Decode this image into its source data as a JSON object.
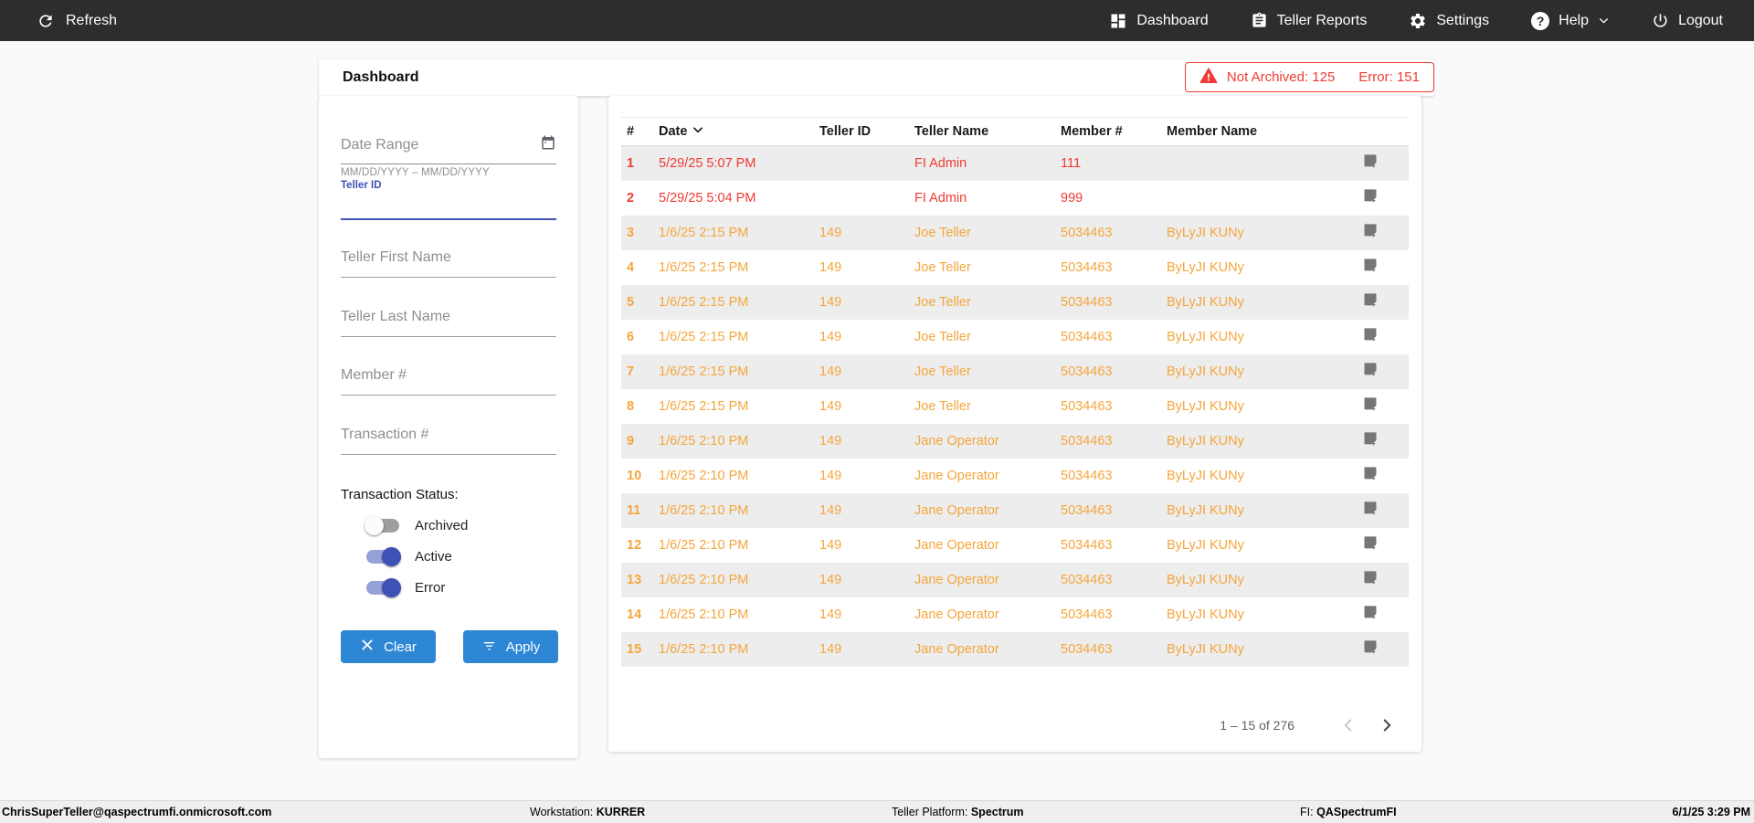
{
  "navbar": {
    "refresh_label": "Refresh",
    "items": [
      {
        "label": "Dashboard",
        "icon": "dashboard-icon"
      },
      {
        "label": "Teller Reports",
        "icon": "teller-reports-icon"
      },
      {
        "label": "Settings",
        "icon": "gear-icon"
      },
      {
        "label": "Help",
        "icon": "help-icon",
        "chevron": true
      },
      {
        "label": "Logout",
        "icon": "power-icon"
      }
    ]
  },
  "header": {
    "title": "Dashboard",
    "alert": {
      "not_archived": "Not Archived: 125",
      "error": "Error: 151"
    }
  },
  "filters": {
    "date_range_placeholder": "Date Range",
    "date_range_helper": "MM/DD/YYYY – MM/DD/YYYY",
    "teller_id_label": "Teller ID",
    "teller_first_name_placeholder": "Teller First Name",
    "teller_last_name_placeholder": "Teller Last Name",
    "member_number_placeholder": "Member #",
    "transaction_number_placeholder": "Transaction #",
    "status_heading": "Transaction Status:",
    "toggles": [
      {
        "label": "Archived",
        "on": false
      },
      {
        "label": "Active",
        "on": true
      },
      {
        "label": "Error",
        "on": true
      }
    ],
    "clear_button": "Clear",
    "apply_button": "Apply"
  },
  "table": {
    "columns": [
      "#",
      "Date",
      "Teller ID",
      "Teller Name",
      "Member #",
      "Member Name"
    ],
    "sort_column": "Date",
    "rows": [
      {
        "num": "1",
        "date": "5/29/25 5:07 PM",
        "teller_id": "",
        "teller_name": "FI Admin",
        "member_number": "111",
        "member_name": "",
        "status": "error"
      },
      {
        "num": "2",
        "date": "5/29/25 5:04 PM",
        "teller_id": "",
        "teller_name": "FI Admin",
        "member_number": "999",
        "member_name": "",
        "status": "error"
      },
      {
        "num": "3",
        "date": "1/6/25 2:15 PM",
        "teller_id": "149",
        "teller_name": "Joe Teller",
        "member_number": "5034463",
        "member_name": "ByLyJI KUNy",
        "status": "warning"
      },
      {
        "num": "4",
        "date": "1/6/25 2:15 PM",
        "teller_id": "149",
        "teller_name": "Joe Teller",
        "member_number": "5034463",
        "member_name": "ByLyJI KUNy",
        "status": "warning"
      },
      {
        "num": "5",
        "date": "1/6/25 2:15 PM",
        "teller_id": "149",
        "teller_name": "Joe Teller",
        "member_number": "5034463",
        "member_name": "ByLyJI KUNy",
        "status": "warning"
      },
      {
        "num": "6",
        "date": "1/6/25 2:15 PM",
        "teller_id": "149",
        "teller_name": "Joe Teller",
        "member_number": "5034463",
        "member_name": "ByLyJI KUNy",
        "status": "warning"
      },
      {
        "num": "7",
        "date": "1/6/25 2:15 PM",
        "teller_id": "149",
        "teller_name": "Joe Teller",
        "member_number": "5034463",
        "member_name": "ByLyJI KUNy",
        "status": "warning"
      },
      {
        "num": "8",
        "date": "1/6/25 2:15 PM",
        "teller_id": "149",
        "teller_name": "Joe Teller",
        "member_number": "5034463",
        "member_name": "ByLyJI KUNy",
        "status": "warning"
      },
      {
        "num": "9",
        "date": "1/6/25 2:10 PM",
        "teller_id": "149",
        "teller_name": "Jane Operator",
        "member_number": "5034463",
        "member_name": "ByLyJI KUNy",
        "status": "warning"
      },
      {
        "num": "10",
        "date": "1/6/25 2:10 PM",
        "teller_id": "149",
        "teller_name": "Jane Operator",
        "member_number": "5034463",
        "member_name": "ByLyJI KUNy",
        "status": "warning"
      },
      {
        "num": "11",
        "date": "1/6/25 2:10 PM",
        "teller_id": "149",
        "teller_name": "Jane Operator",
        "member_number": "5034463",
        "member_name": "ByLyJI KUNy",
        "status": "warning"
      },
      {
        "num": "12",
        "date": "1/6/25 2:10 PM",
        "teller_id": "149",
        "teller_name": "Jane Operator",
        "member_number": "5034463",
        "member_name": "ByLyJI KUNy",
        "status": "warning"
      },
      {
        "num": "13",
        "date": "1/6/25 2:10 PM",
        "teller_id": "149",
        "teller_name": "Jane Operator",
        "member_number": "5034463",
        "member_name": "ByLyJI KUNy",
        "status": "warning"
      },
      {
        "num": "14",
        "date": "1/6/25 2:10 PM",
        "teller_id": "149",
        "teller_name": "Jane Operator",
        "member_number": "5034463",
        "member_name": "ByLyJI KUNy",
        "status": "warning"
      },
      {
        "num": "15",
        "date": "1/6/25 2:10 PM",
        "teller_id": "149",
        "teller_name": "Jane Operator",
        "member_number": "5034463",
        "member_name": "ByLyJI KUNy",
        "status": "warning"
      }
    ],
    "pagination": {
      "range": "1 – 15 of 276"
    }
  },
  "footer": {
    "user_email": "ChrisSuperTeller@qaspectrumfi.onmicrosoft.com",
    "workstation_label": "Workstation:",
    "workstation_value": "KURRER",
    "platform_label": "Teller Platform:",
    "platform_value": "Spectrum",
    "fi_label": "FI:",
    "fi_value": "QASpectrumFI",
    "datetime": "6/1/25 3:29 PM"
  },
  "colors": {
    "navbar_bg": "#2d2d2d",
    "status_error": "#f13a34",
    "status_warning": "#f4a63c",
    "accent_blue": "#2d87d5",
    "accent_indigo": "#3f51b5"
  }
}
